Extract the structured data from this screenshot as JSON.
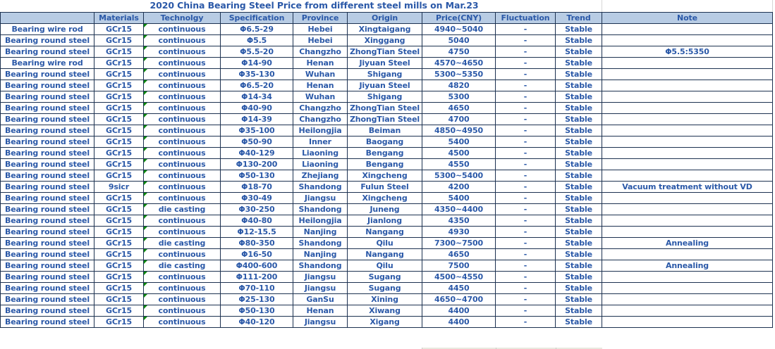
{
  "title": "2020 China Bearing Steel Price from different steel mills on Mar.23",
  "colors": {
    "text_blue": "#2b59a8",
    "header_fill": "#b8cce4",
    "table_border": "#1d3251",
    "error_indicator_green": "#0c8a0c",
    "gridline_gray": "#d6d6d6",
    "partial_row_fill": "#e8e9e0"
  },
  "icons": {
    "cell_error_indicator": "green-triangle-top-left"
  },
  "table": {
    "column_names": [
      "row-label",
      "materials",
      "technology",
      "specification",
      "province",
      "origin",
      "price",
      "fluctuation",
      "trend",
      "note"
    ],
    "headers": [
      "",
      "Materials",
      "Technolgy",
      "Specification",
      "Province",
      "Origin",
      "Price(CNY)",
      "Fluctuation",
      "Trend",
      "Note"
    ],
    "rows": [
      [
        "Bearing wire rod",
        "GCr15",
        "continuous",
        "Φ6.5-29",
        "Hebei",
        "Xingtaigang",
        "4940~5040",
        "-",
        "Stable",
        ""
      ],
      [
        "Bearing round steel",
        "GCr15",
        "continuous",
        "Φ5.5",
        "Hebei",
        "Xinggang",
        "5040",
        "-",
        "Stable",
        ""
      ],
      [
        "Bearing round steel",
        "GCr15",
        "continuous",
        "Φ5.5-20",
        "Changzho",
        "ZhongTian Steel",
        "4750",
        "-",
        "Stable",
        "Φ5.5:5350"
      ],
      [
        "Bearing wire rod",
        "GCr15",
        "continuous",
        "Φ14-90",
        "Henan",
        "Jiyuan Steel",
        "4570~4650",
        "-",
        "Stable",
        ""
      ],
      [
        "Bearing round steel",
        "GCr15",
        "continuous",
        "Φ35-130",
        "Wuhan",
        "Shigang",
        "5300~5350",
        "-",
        "Stable",
        ""
      ],
      [
        "Bearing round steel",
        "GCr15",
        "continuous",
        "Φ6.5-20",
        "Henan",
        "Jiyuan Steel",
        "4820",
        "-",
        "Stable",
        ""
      ],
      [
        "Bearing round steel",
        "GCr15",
        "continuous",
        "Φ14-34",
        "Wuhan",
        "Shigang",
        "5300",
        "-",
        "Stable",
        ""
      ],
      [
        "Bearing round steel",
        "GCr15",
        "continuous",
        "Φ40-90",
        "Changzho",
        "ZhongTian Steel",
        "4650",
        "-",
        "Stable",
        ""
      ],
      [
        "Bearing round steel",
        "GCr15",
        "continuous",
        "Φ14-39",
        "Changzho",
        "ZhongTian Steel",
        "4700",
        "-",
        "Stable",
        ""
      ],
      [
        "Bearing round steel",
        "GCr15",
        "continuous",
        "Φ35-100",
        "Heilongjia",
        "Beiman",
        "4850~4950",
        "-",
        "Stable",
        ""
      ],
      [
        "Bearing round steel",
        "GCr15",
        "continuous",
        "Φ50-90",
        "Inner",
        "Baogang",
        "5400",
        "-",
        "Stable",
        ""
      ],
      [
        "Bearing round steel",
        "GCr15",
        "continuous",
        "Φ40-129",
        "Liaoning",
        "Bengang",
        "4500",
        "-",
        "Stable",
        ""
      ],
      [
        "Bearing round steel",
        "GCr15",
        "continuous",
        "Φ130-200",
        "Liaoning",
        "Bengang",
        "4550",
        "-",
        "Stable",
        ""
      ],
      [
        "Bearing round steel",
        "GCr15",
        "continuous",
        "Φ50-130",
        "Zhejiang",
        "Xingcheng",
        "5300~5400",
        "-",
        "Stable",
        ""
      ],
      [
        "Bearing round steel",
        "9sicr",
        "continuous",
        "Φ18-70",
        "Shandong",
        "Fulun Steel",
        "4200",
        "-",
        "Stable",
        "Vacuum treatment without VD"
      ],
      [
        "Bearing round steel",
        "GCr15",
        "continuous",
        "Φ30-49",
        "Jiangsu",
        "Xingcheng",
        "5400",
        "-",
        "Stable",
        ""
      ],
      [
        "Bearing round steel",
        "GCr15",
        "die casting",
        "Φ30-250",
        "Shandong",
        "Juneng",
        "4350~4400",
        "-",
        "Stable",
        ""
      ],
      [
        "Bearing round steel",
        "GCr15",
        "continuous",
        "Φ40-80",
        "Heilongjia",
        "Jianlong",
        "4350",
        "-",
        "Stable",
        ""
      ],
      [
        "Bearing round steel",
        "GCr15",
        "continuous",
        "Φ12-15.5",
        "Nanjing",
        "Nangang",
        "4930",
        "-",
        "Stable",
        ""
      ],
      [
        "Bearing round steel",
        "GCr15",
        "die casting",
        "Φ80-350",
        "Shandong",
        "Qilu",
        "7300~7500",
        "-",
        "Stable",
        "Annealing"
      ],
      [
        "Bearing round steel",
        "GCr15",
        "continuous",
        "Φ16-50",
        "Nanjing",
        "Nangang",
        "4650",
        "-",
        "Stable",
        ""
      ],
      [
        "Bearing round steel",
        "GCr15",
        "die casting",
        "Φ400-600",
        "Shandong",
        "Qilu",
        "7500",
        "-",
        "Stable",
        "Annealing"
      ],
      [
        "Bearing round steel",
        "GCr15",
        "continuous",
        "Φ111-200",
        "Jiangsu",
        "Sugang",
        "4500~4550",
        "-",
        "Stable",
        ""
      ],
      [
        "Bearing round steel",
        "GCr15",
        "continuous",
        "Φ70-110",
        "Jiangsu",
        "Sugang",
        "4450",
        "-",
        "Stable",
        ""
      ],
      [
        "Bearing round steel",
        "GCr15",
        "continuous",
        "Φ25-130",
        "GanSu",
        "Xining",
        "4650~4700",
        "-",
        "Stable",
        ""
      ],
      [
        "Bearing round steel",
        "GCr15",
        "continuous",
        "Φ50-130",
        "Henan",
        "Xiwang",
        "4400",
        "-",
        "Stable",
        ""
      ],
      [
        "Bearing round steel",
        "GCr15",
        "continuous",
        "Φ40-120",
        "Jiangsu",
        "Xigang",
        "4400",
        "-",
        "Stable",
        ""
      ]
    ]
  }
}
